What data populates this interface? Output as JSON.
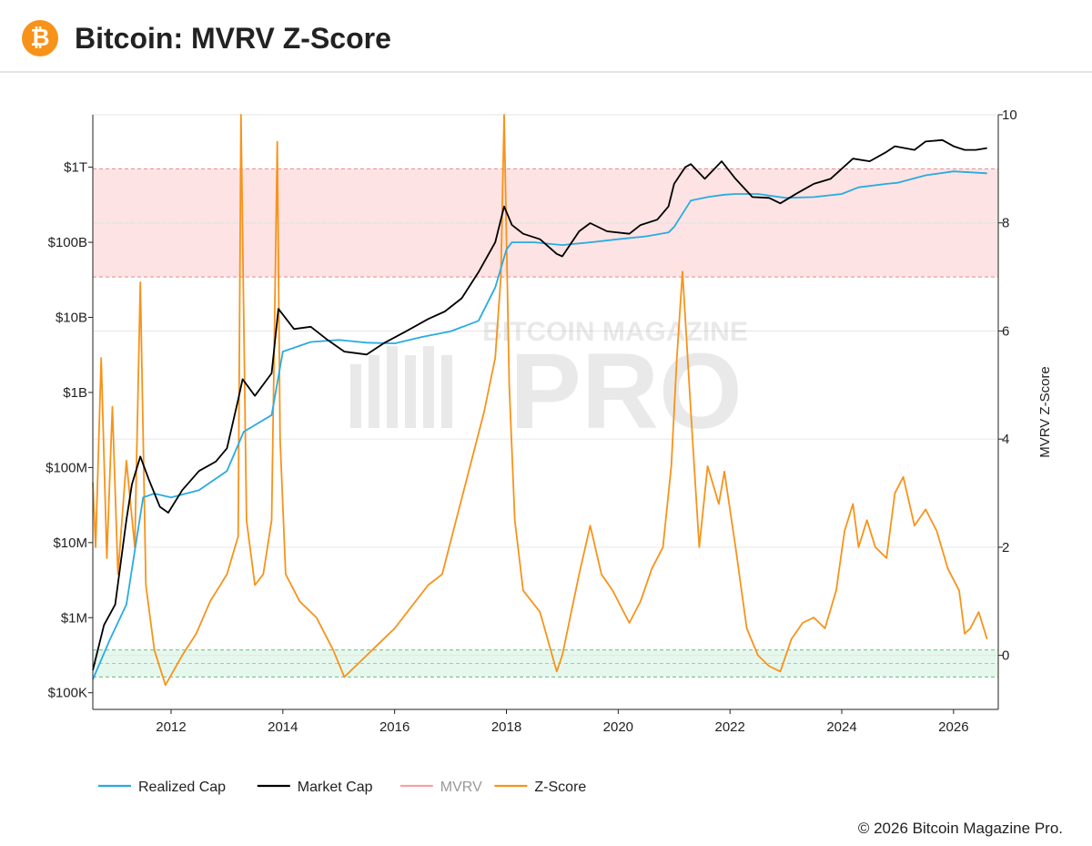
{
  "header": {
    "title": "Bitcoin: MVRV Z-Score",
    "logo_icon": "bitcoin-icon",
    "logo_glyph": "₿"
  },
  "footer": {
    "copyright": "© 2026 Bitcoin Magazine Pro."
  },
  "watermark": {
    "line1": "BITCOIN MAGAZINE",
    "line2": "PRO"
  },
  "colors": {
    "realized": "#29abe2",
    "market": "#000000",
    "mvrv": "#f4a3a3",
    "zscore": "#f7931a",
    "red_band": "#fde3e3",
    "green_band": "#e6f8ee"
  },
  "chart_data": {
    "type": "line",
    "title": "Bitcoin: MVRV Z-Score",
    "x_range": [
      2010.6,
      2026.8
    ],
    "x_ticks": [
      "2012",
      "2014",
      "2016",
      "2018",
      "2020",
      "2022",
      "2024",
      "2026"
    ],
    "y_left": {
      "scale": "log",
      "range": [
        60000,
        5000000000000
      ],
      "ticks": [
        {
          "label": "$100K",
          "value": 100000
        },
        {
          "label": "$1M",
          "value": 1000000
        },
        {
          "label": "$10M",
          "value": 10000000
        },
        {
          "label": "$100M",
          "value": 100000000
        },
        {
          "label": "$1B",
          "value": 1000000000
        },
        {
          "label": "$10B",
          "value": 10000000000
        },
        {
          "label": "$100B",
          "value": 100000000000
        },
        {
          "label": "$1T",
          "value": 1000000000000
        }
      ]
    },
    "y_right": {
      "label": "MVRV Z-Score",
      "range": [
        -1,
        10
      ],
      "ticks": [
        "0",
        "2",
        "4",
        "6",
        "8",
        "10"
      ]
    },
    "bands": [
      {
        "zone": "overvalued",
        "from": 7,
        "to": 9
      },
      {
        "zone": "undervalued",
        "from": -0.4,
        "to": 0.1
      }
    ],
    "legend": [
      {
        "name": "Realized Cap",
        "color": "#29abe2",
        "muted": false
      },
      {
        "name": "Market Cap",
        "color": "#000000",
        "muted": false
      },
      {
        "name": "MVRV",
        "color": "#f4a3a3",
        "muted": true
      },
      {
        "name": "Z-Score",
        "color": "#f7931a",
        "muted": false
      }
    ],
    "series": [
      {
        "name": "Market Cap",
        "axis": "left",
        "x": [
          2010.6,
          2010.8,
          2011.0,
          2011.2,
          2011.3,
          2011.45,
          2011.6,
          2011.8,
          2011.95,
          2012.2,
          2012.5,
          2012.8,
          2013.0,
          2013.2,
          2013.28,
          2013.5,
          2013.8,
          2013.92,
          2014.2,
          2014.5,
          2014.8,
          2015.1,
          2015.5,
          2015.8,
          2016.2,
          2016.6,
          2016.9,
          2017.2,
          2017.5,
          2017.8,
          2017.96,
          2018.1,
          2018.3,
          2018.6,
          2018.9,
          2019.0,
          2019.3,
          2019.5,
          2019.8,
          2020.2,
          2020.4,
          2020.7,
          2020.9,
          2021.0,
          2021.2,
          2021.3,
          2021.55,
          2021.85,
          2022.1,
          2022.4,
          2022.7,
          2022.9,
          2023.2,
          2023.5,
          2023.8,
          2024.2,
          2024.5,
          2024.8,
          2024.95,
          2025.3,
          2025.5,
          2025.8,
          2026.0,
          2026.2,
          2026.4,
          2026.6
        ],
        "y": [
          200000,
          800000,
          1500000,
          20000000,
          60000000,
          140000000,
          70000000,
          30000000,
          25000000,
          50000000,
          90000000,
          120000000,
          180000000,
          800000000,
          1500000000,
          900000000,
          1800000000,
          13000000000,
          7000000000,
          7500000000,
          5000000000,
          3500000000,
          3200000000,
          4500000000,
          6500000000,
          9500000000,
          12000000000,
          18000000000,
          40000000000,
          100000000000,
          300000000000,
          170000000000,
          130000000000,
          110000000000,
          70000000000,
          65000000000,
          140000000000,
          180000000000,
          140000000000,
          130000000000,
          170000000000,
          200000000000,
          300000000000,
          600000000000,
          1000000000000,
          1100000000000,
          700000000000,
          1200000000000,
          700000000000,
          400000000000,
          390000000000,
          330000000000,
          450000000000,
          600000000000,
          700000000000,
          1300000000000,
          1200000000000,
          1600000000000,
          1900000000000,
          1700000000000,
          2200000000000,
          2300000000000,
          1900000000000,
          1700000000000,
          1700000000000,
          1800000000000
        ]
      },
      {
        "name": "Realized Cap",
        "axis": "left",
        "x": [
          2010.6,
          2010.9,
          2011.2,
          2011.5,
          2011.7,
          2012.0,
          2012.5,
          2013.0,
          2013.3,
          2013.8,
          2014.0,
          2014.5,
          2015.0,
          2015.5,
          2016.0,
          2016.5,
          2017.0,
          2017.5,
          2017.8,
          2018.0,
          2018.1,
          2018.5,
          2019.0,
          2019.5,
          2020.0,
          2020.5,
          2020.9,
          2021.0,
          2021.3,
          2021.6,
          2021.9,
          2022.1,
          2022.5,
          2023.0,
          2023.5,
          2024.0,
          2024.3,
          2024.8,
          2025.0,
          2025.5,
          2026.0,
          2026.6
        ],
        "y": [
          150000,
          500000,
          1500000,
          40000000,
          45000000,
          40000000,
          50000000,
          90000000,
          300000000,
          500000000,
          3500000000,
          4700000000,
          5000000000,
          4600000000,
          4500000000,
          5500000000,
          6500000000,
          9000000000,
          25000000000,
          80000000000,
          100000000000,
          100000000000,
          92000000000,
          100000000000,
          110000000000,
          120000000000,
          135000000000,
          160000000000,
          360000000000,
          400000000000,
          430000000000,
          440000000000,
          440000000000,
          390000000000,
          400000000000,
          440000000000,
          540000000000,
          600000000000,
          620000000000,
          780000000000,
          880000000000,
          830000000000
        ]
      },
      {
        "name": "Z-Score",
        "axis": "right",
        "x": [
          2010.6,
          2010.65,
          2010.75,
          2010.85,
          2010.95,
          2011.05,
          2011.2,
          2011.35,
          2011.45,
          2011.55,
          2011.7,
          2011.9,
          2012.2,
          2012.45,
          2012.7,
          2013.0,
          2013.2,
          2013.25,
          2013.35,
          2013.5,
          2013.65,
          2013.8,
          2013.9,
          2013.95,
          2014.05,
          2014.3,
          2014.6,
          2014.9,
          2015.1,
          2015.4,
          2015.7,
          2016.0,
          2016.3,
          2016.6,
          2016.85,
          2017.1,
          2017.35,
          2017.6,
          2017.8,
          2017.9,
          2017.96,
          2018.05,
          2018.15,
          2018.3,
          2018.6,
          2018.9,
          2019.0,
          2019.3,
          2019.5,
          2019.7,
          2019.9,
          2020.2,
          2020.4,
          2020.6,
          2020.8,
          2020.95,
          2021.05,
          2021.15,
          2021.3,
          2021.45,
          2021.6,
          2021.8,
          2021.9,
          2022.1,
          2022.3,
          2022.5,
          2022.7,
          2022.9,
          2023.1,
          2023.3,
          2023.5,
          2023.7,
          2023.9,
          2024.05,
          2024.2,
          2024.3,
          2024.45,
          2024.6,
          2024.8,
          2024.95,
          2025.1,
          2025.3,
          2025.5,
          2025.7,
          2025.9,
          2026.1,
          2026.2,
          2026.3,
          2026.45,
          2026.6
        ],
        "y": [
          3.2,
          2.0,
          5.5,
          1.8,
          4.6,
          1.5,
          3.6,
          2.0,
          6.9,
          1.3,
          0.1,
          -0.55,
          0.0,
          0.4,
          1.0,
          1.5,
          2.2,
          10.0,
          2.5,
          1.3,
          1.5,
          2.5,
          9.5,
          4.0,
          1.5,
          1.0,
          0.7,
          0.1,
          -0.4,
          -0.1,
          0.2,
          0.5,
          0.9,
          1.3,
          1.5,
          2.5,
          3.5,
          4.5,
          5.5,
          7.0,
          10.0,
          5.0,
          2.5,
          1.2,
          0.8,
          -0.3,
          0.0,
          1.5,
          2.4,
          1.5,
          1.2,
          0.6,
          1.0,
          1.6,
          2.0,
          3.5,
          5.5,
          7.1,
          4.5,
          2.0,
          3.5,
          2.8,
          3.4,
          2.0,
          0.5,
          0.0,
          -0.2,
          -0.3,
          0.3,
          0.6,
          0.7,
          0.5,
          1.2,
          2.3,
          2.8,
          2.0,
          2.5,
          2.0,
          1.8,
          3.0,
          3.3,
          2.4,
          2.7,
          2.3,
          1.6,
          1.2,
          0.4,
          0.5,
          0.8,
          0.3
        ]
      }
    ]
  }
}
